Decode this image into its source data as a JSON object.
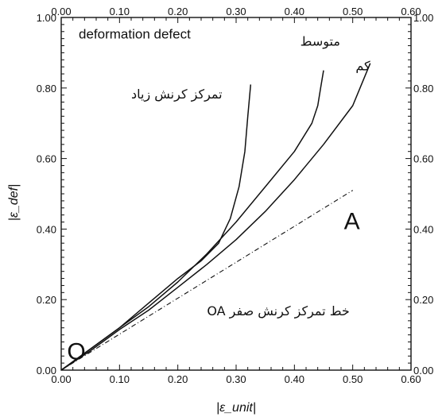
{
  "chart_data": {
    "type": "line",
    "title": "",
    "xlabel": "|ε_unit|",
    "ylabel": "|ε_def|",
    "xlim": [
      0,
      0.6
    ],
    "ylim": [
      0,
      1.0
    ],
    "x_ticks": [
      "0.00",
      "0.10",
      "0.20",
      "0.30",
      "0.40",
      "0.50",
      "0.60"
    ],
    "y_ticks": [
      "0.00",
      "0.20",
      "0.40",
      "0.60",
      "0.80",
      "1.00"
    ],
    "top_ticks": [
      "0.00",
      "0.10",
      "0.20",
      "0.30",
      "0.40",
      "0.50",
      "0.60"
    ],
    "right_ticks": [
      "0.00",
      "0.20",
      "0.40",
      "0.60",
      "0.80",
      "1.00"
    ],
    "grid": false,
    "series": [
      {
        "name": "تمرکز کرنش زیاد",
        "style": "solid",
        "points": [
          [
            0,
            0
          ],
          [
            0.05,
            0.06
          ],
          [
            0.1,
            0.12
          ],
          [
            0.15,
            0.19
          ],
          [
            0.2,
            0.26
          ],
          [
            0.24,
            0.31
          ],
          [
            0.27,
            0.36
          ],
          [
            0.29,
            0.43
          ],
          [
            0.305,
            0.52
          ],
          [
            0.315,
            0.62
          ],
          [
            0.32,
            0.72
          ],
          [
            0.325,
            0.81
          ]
        ]
      },
      {
        "name": "متوسط",
        "style": "solid",
        "points": [
          [
            0,
            0
          ],
          [
            0.05,
            0.06
          ],
          [
            0.1,
            0.12
          ],
          [
            0.15,
            0.18
          ],
          [
            0.2,
            0.25
          ],
          [
            0.25,
            0.33
          ],
          [
            0.3,
            0.42
          ],
          [
            0.35,
            0.52
          ],
          [
            0.4,
            0.62
          ],
          [
            0.43,
            0.7
          ],
          [
            0.44,
            0.75
          ],
          [
            0.445,
            0.8
          ],
          [
            0.45,
            0.85
          ]
        ]
      },
      {
        "name": "کم",
        "style": "solid",
        "points": [
          [
            0,
            0
          ],
          [
            0.05,
            0.055
          ],
          [
            0.1,
            0.115
          ],
          [
            0.15,
            0.17
          ],
          [
            0.2,
            0.235
          ],
          [
            0.25,
            0.3
          ],
          [
            0.3,
            0.37
          ],
          [
            0.35,
            0.45
          ],
          [
            0.4,
            0.54
          ],
          [
            0.45,
            0.64
          ],
          [
            0.5,
            0.75
          ],
          [
            0.53,
            0.87
          ]
        ]
      },
      {
        "name": "OA خط تمرکز کرنش صفر",
        "style": "dashed",
        "points": [
          [
            0,
            0
          ],
          [
            0.5,
            0.51
          ]
        ]
      }
    ],
    "annotations": [
      {
        "text": "deformation  defect",
        "x": 0.03,
        "y": 0.94,
        "kind": "annot"
      },
      {
        "text": "متوسط",
        "x": 0.41,
        "y": 0.92,
        "kind": "annot-fa"
      },
      {
        "text": "کم",
        "x": 0.505,
        "y": 0.85,
        "kind": "annot-fa"
      },
      {
        "text": "تمرکز کرنش  زیاد",
        "x": 0.12,
        "y": 0.77,
        "kind": "annot-fa"
      },
      {
        "text": "OA خط تمرکز کرنش صفر",
        "x": 0.25,
        "y": 0.155,
        "kind": "annot-fa"
      },
      {
        "text": "A",
        "x": 0.485,
        "y": 0.4,
        "kind": "big-letter"
      },
      {
        "text": "O",
        "x": 0.01,
        "y": 0.03,
        "kind": "big-letter"
      }
    ]
  }
}
